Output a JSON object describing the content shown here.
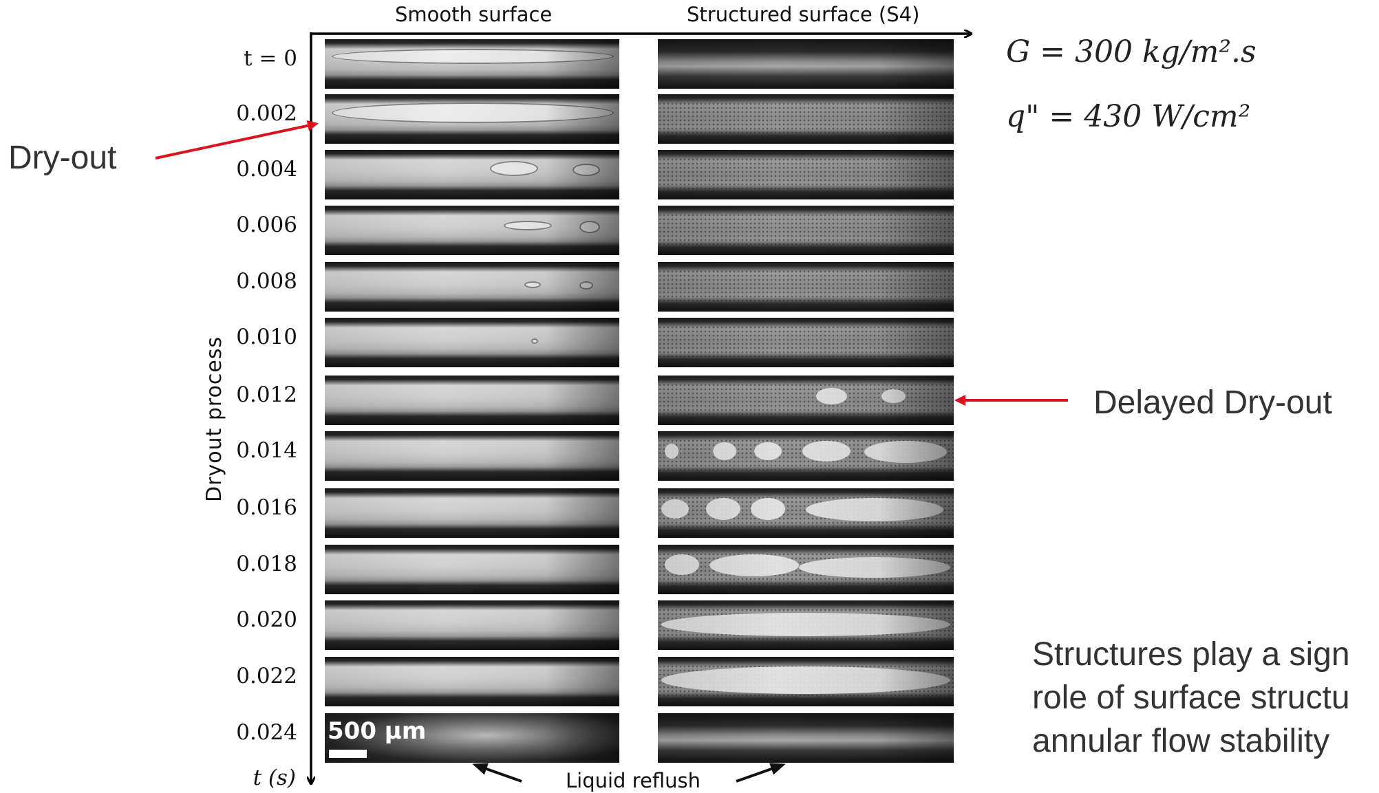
{
  "headers": {
    "left": "Smooth surface",
    "right": "Structured surface (S4)"
  },
  "time_labels": [
    "t = 0",
    "0.002",
    "0.004",
    "0.006",
    "0.008",
    "0.010",
    "0.012",
    "0.014",
    "0.016",
    "0.018",
    "0.020",
    "0.022",
    "0.024"
  ],
  "time_axis_label": "t (s)",
  "y_axis_label": "Dryout  process",
  "equations": {
    "mass_flux": "G = 300 kg/m².s",
    "heat_flux": "q\" = 430  W/cm²"
  },
  "callouts": {
    "dry_out": "Dry-out",
    "delayed_dry_out": "Delayed Dry-out"
  },
  "liquid_reflush": "Liquid reflush",
  "scale_bar": "500 µm",
  "note_lines": [
    "Structures play a sign",
    "role of surface structu",
    "annular flow stability"
  ],
  "colors": {
    "arrow_red": "#d9141e",
    "axis": "#000000"
  }
}
